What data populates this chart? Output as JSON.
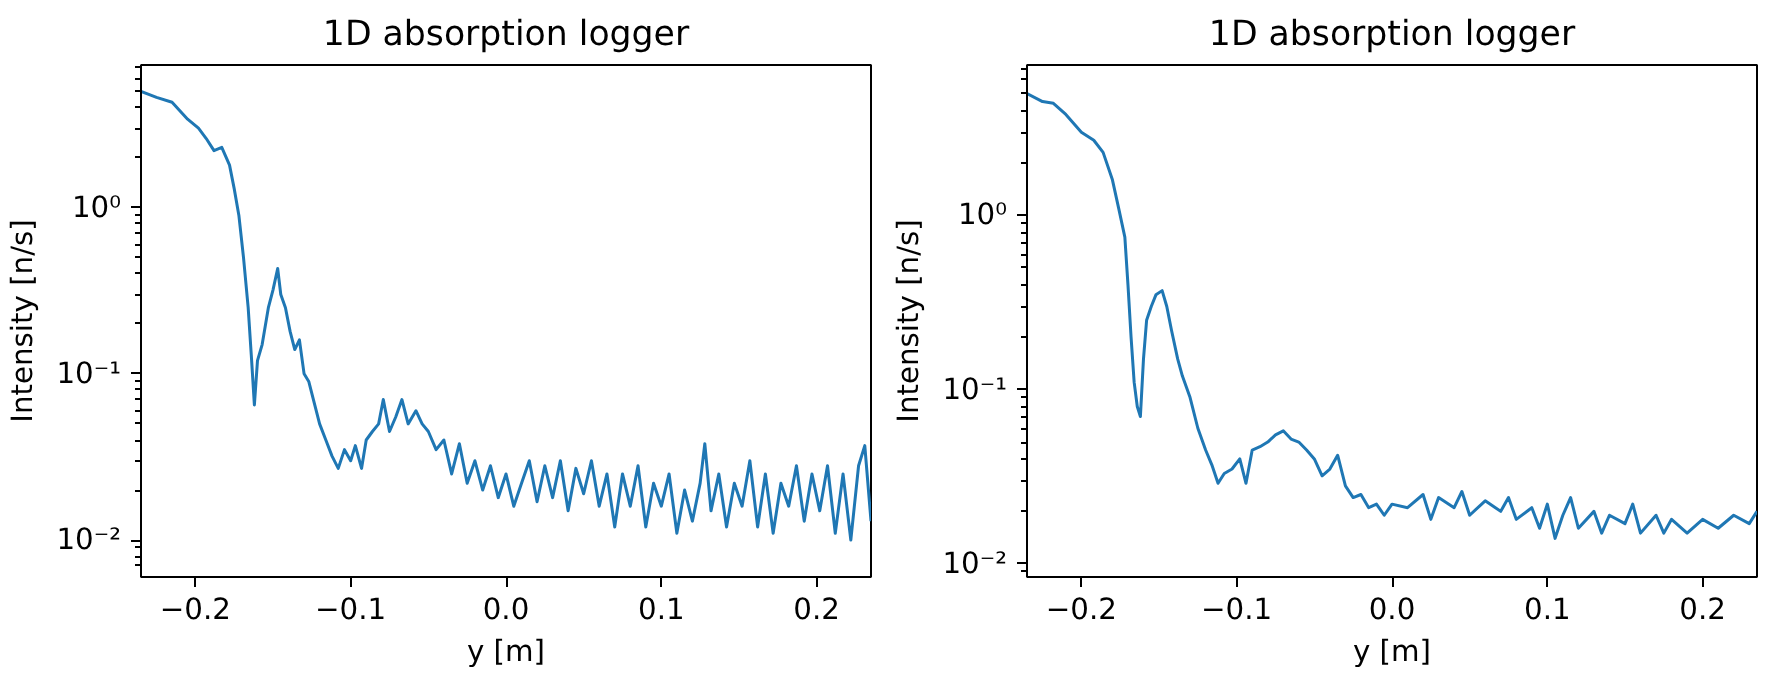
{
  "chart_data": [
    {
      "type": "line",
      "title": "1D absorption logger",
      "xlabel": "y [m]",
      "ylabel": "Intensity [n/s]",
      "log": "y",
      "grid": false,
      "xlim": [
        -0.235,
        0.235
      ],
      "ylim": [
        0.006,
        7.2
      ],
      "xticks": [
        {
          "value": -0.2,
          "label": "−0.2"
        },
        {
          "value": -0.1,
          "label": "−0.1"
        },
        {
          "value": 0.0,
          "label": "0.0"
        },
        {
          "value": 0.1,
          "label": "0.1"
        },
        {
          "value": 0.2,
          "label": "0.2"
        }
      ],
      "yticks": [
        {
          "value": 0.01,
          "label": "10⁻²"
        },
        {
          "value": 0.1,
          "label": "10⁻¹"
        },
        {
          "value": 1,
          "label": "10⁰"
        },
        {
          "value": 0.007,
          "label": null
        },
        {
          "value": 0.008,
          "label": null
        },
        {
          "value": 0.009,
          "label": null
        },
        {
          "value": 0.02,
          "label": null
        },
        {
          "value": 0.03,
          "label": null
        },
        {
          "value": 0.04,
          "label": null
        },
        {
          "value": 0.05,
          "label": null
        },
        {
          "value": 0.06,
          "label": null
        },
        {
          "value": 0.07,
          "label": null
        },
        {
          "value": 0.08,
          "label": null
        },
        {
          "value": 0.09,
          "label": null
        },
        {
          "value": 0.2,
          "label": null
        },
        {
          "value": 0.3,
          "label": null
        },
        {
          "value": 0.4,
          "label": null
        },
        {
          "value": 0.5,
          "label": null
        },
        {
          "value": 0.6,
          "label": null
        },
        {
          "value": 0.7,
          "label": null
        },
        {
          "value": 0.8,
          "label": null
        },
        {
          "value": 0.9,
          "label": null
        },
        {
          "value": 2,
          "label": null
        },
        {
          "value": 3,
          "label": null
        },
        {
          "value": 4,
          "label": null
        },
        {
          "value": 5,
          "label": null
        },
        {
          "value": 6,
          "label": null
        },
        {
          "value": 7,
          "label": null
        }
      ],
      "series": [
        {
          "color": "#1f77b4",
          "x": [
            -0.235,
            -0.225,
            -0.215,
            -0.205,
            -0.198,
            -0.193,
            -0.188,
            -0.183,
            -0.178,
            -0.175,
            -0.172,
            -0.169,
            -0.166,
            -0.164,
            -0.162,
            -0.16,
            -0.157,
            -0.153,
            -0.15,
            -0.147,
            -0.145,
            -0.142,
            -0.139,
            -0.136,
            -0.133,
            -0.13,
            -0.127,
            -0.124,
            -0.12,
            -0.116,
            -0.112,
            -0.108,
            -0.104,
            -0.1,
            -0.097,
            -0.093,
            -0.09,
            -0.086,
            -0.082,
            -0.079,
            -0.075,
            -0.071,
            -0.067,
            -0.063,
            -0.058,
            -0.054,
            -0.05,
            -0.045,
            -0.04,
            -0.035,
            -0.03,
            -0.025,
            -0.02,
            -0.015,
            -0.01,
            -0.005,
            0.0,
            0.005,
            0.01,
            0.015,
            0.02,
            0.025,
            0.03,
            0.035,
            0.04,
            0.045,
            0.05,
            0.055,
            0.06,
            0.065,
            0.07,
            0.075,
            0.08,
            0.085,
            0.09,
            0.095,
            0.1,
            0.105,
            0.11,
            0.115,
            0.12,
            0.125,
            0.128,
            0.132,
            0.137,
            0.142,
            0.147,
            0.152,
            0.157,
            0.162,
            0.167,
            0.172,
            0.177,
            0.182,
            0.187,
            0.192,
            0.197,
            0.202,
            0.207,
            0.212,
            0.217,
            0.222,
            0.227,
            0.231,
            0.235
          ],
          "values": [
            5.0,
            4.6,
            4.3,
            3.4,
            3.0,
            2.6,
            2.2,
            2.3,
            1.8,
            1.3,
            0.9,
            0.5,
            0.25,
            0.13,
            0.065,
            0.12,
            0.15,
            0.25,
            0.32,
            0.43,
            0.3,
            0.25,
            0.18,
            0.14,
            0.16,
            0.1,
            0.09,
            0.07,
            0.05,
            0.04,
            0.032,
            0.027,
            0.035,
            0.03,
            0.037,
            0.027,
            0.04,
            0.045,
            0.05,
            0.07,
            0.045,
            0.055,
            0.07,
            0.05,
            0.06,
            0.05,
            0.045,
            0.035,
            0.04,
            0.025,
            0.038,
            0.022,
            0.03,
            0.02,
            0.028,
            0.018,
            0.025,
            0.016,
            0.022,
            0.03,
            0.017,
            0.028,
            0.018,
            0.03,
            0.015,
            0.027,
            0.019,
            0.03,
            0.016,
            0.025,
            0.012,
            0.025,
            0.016,
            0.028,
            0.012,
            0.022,
            0.016,
            0.025,
            0.011,
            0.02,
            0.013,
            0.022,
            0.038,
            0.015,
            0.025,
            0.012,
            0.022,
            0.016,
            0.03,
            0.012,
            0.025,
            0.011,
            0.022,
            0.016,
            0.028,
            0.013,
            0.025,
            0.015,
            0.028,
            0.011,
            0.025,
            0.01,
            0.028,
            0.037,
            0.013
          ]
        }
      ]
    },
    {
      "type": "line",
      "title": "1D absorption logger",
      "xlabel": "y [m]",
      "ylabel": "Intensity [n/s]",
      "log": "y",
      "grid": false,
      "xlim": [
        -0.235,
        0.235
      ],
      "ylim": [
        0.0084,
        7.3
      ],
      "xticks": [
        {
          "value": -0.2,
          "label": "−0.2"
        },
        {
          "value": -0.1,
          "label": "−0.1"
        },
        {
          "value": 0.0,
          "label": "0.0"
        },
        {
          "value": 0.1,
          "label": "0.1"
        },
        {
          "value": 0.2,
          "label": "0.2"
        }
      ],
      "yticks": [
        {
          "value": 0.01,
          "label": "10⁻²"
        },
        {
          "value": 0.1,
          "label": "10⁻¹"
        },
        {
          "value": 1,
          "label": "10⁰"
        },
        {
          "value": 0.009,
          "label": null
        },
        {
          "value": 0.02,
          "label": null
        },
        {
          "value": 0.03,
          "label": null
        },
        {
          "value": 0.04,
          "label": null
        },
        {
          "value": 0.05,
          "label": null
        },
        {
          "value": 0.06,
          "label": null
        },
        {
          "value": 0.07,
          "label": null
        },
        {
          "value": 0.08,
          "label": null
        },
        {
          "value": 0.09,
          "label": null
        },
        {
          "value": 0.2,
          "label": null
        },
        {
          "value": 0.3,
          "label": null
        },
        {
          "value": 0.4,
          "label": null
        },
        {
          "value": 0.5,
          "label": null
        },
        {
          "value": 0.6,
          "label": null
        },
        {
          "value": 0.7,
          "label": null
        },
        {
          "value": 0.8,
          "label": null
        },
        {
          "value": 0.9,
          "label": null
        },
        {
          "value": 2,
          "label": null
        },
        {
          "value": 3,
          "label": null
        },
        {
          "value": 4,
          "label": null
        },
        {
          "value": 5,
          "label": null
        },
        {
          "value": 6,
          "label": null
        },
        {
          "value": 7,
          "label": null
        }
      ],
      "series": [
        {
          "color": "#1f77b4",
          "x": [
            -0.235,
            -0.225,
            -0.218,
            -0.21,
            -0.2,
            -0.192,
            -0.186,
            -0.18,
            -0.176,
            -0.172,
            -0.17,
            -0.168,
            -0.166,
            -0.164,
            -0.162,
            -0.16,
            -0.158,
            -0.155,
            -0.152,
            -0.148,
            -0.145,
            -0.142,
            -0.138,
            -0.135,
            -0.13,
            -0.125,
            -0.12,
            -0.116,
            -0.112,
            -0.108,
            -0.103,
            -0.098,
            -0.094,
            -0.09,
            -0.085,
            -0.08,
            -0.075,
            -0.07,
            -0.065,
            -0.06,
            -0.055,
            -0.05,
            -0.045,
            -0.04,
            -0.035,
            -0.03,
            -0.025,
            -0.02,
            -0.015,
            -0.01,
            -0.005,
            0.0,
            0.01,
            0.02,
            0.025,
            0.03,
            0.04,
            0.045,
            0.05,
            0.06,
            0.07,
            0.075,
            0.08,
            0.09,
            0.095,
            0.1,
            0.105,
            0.11,
            0.115,
            0.12,
            0.13,
            0.135,
            0.14,
            0.15,
            0.155,
            0.16,
            0.17,
            0.175,
            0.18,
            0.19,
            0.2,
            0.21,
            0.22,
            0.23,
            0.235
          ],
          "values": [
            5.0,
            4.5,
            4.4,
            3.8,
            3.0,
            2.7,
            2.3,
            1.6,
            1.1,
            0.75,
            0.4,
            0.2,
            0.11,
            0.08,
            0.07,
            0.15,
            0.25,
            0.3,
            0.35,
            0.37,
            0.3,
            0.22,
            0.15,
            0.12,
            0.09,
            0.06,
            0.045,
            0.037,
            0.029,
            0.033,
            0.035,
            0.04,
            0.029,
            0.045,
            0.047,
            0.05,
            0.055,
            0.058,
            0.052,
            0.05,
            0.045,
            0.04,
            0.032,
            0.035,
            0.042,
            0.028,
            0.024,
            0.025,
            0.021,
            0.022,
            0.019,
            0.022,
            0.021,
            0.025,
            0.018,
            0.024,
            0.021,
            0.026,
            0.019,
            0.023,
            0.02,
            0.024,
            0.018,
            0.021,
            0.016,
            0.022,
            0.014,
            0.019,
            0.024,
            0.016,
            0.02,
            0.015,
            0.019,
            0.017,
            0.022,
            0.015,
            0.019,
            0.015,
            0.018,
            0.015,
            0.018,
            0.016,
            0.019,
            0.017,
            0.02
          ]
        }
      ]
    }
  ]
}
